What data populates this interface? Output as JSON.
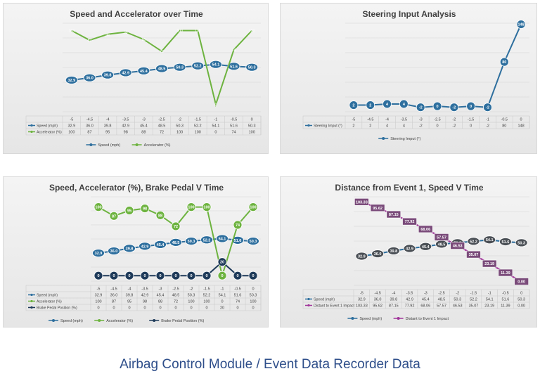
{
  "caption": "Airbag Control Module / Event Data Recorder Data",
  "chart_data": [
    {
      "type": "line",
      "title": "Speed and Accelerator over Time",
      "categories": [
        "-5",
        "-4.5",
        "-4",
        "-3.5",
        "-3",
        "-2.5",
        "-2",
        "-1.5",
        "-1",
        "-0.5",
        "0"
      ],
      "ylim": [
        -10,
        110
      ],
      "series": [
        {
          "name": "Speed (mph)",
          "color": "#2e6f9e",
          "marker": "ellipse",
          "values": [
            32.9,
            36.0,
            39.8,
            42.9,
            45.4,
            48.5,
            50.3,
            52.2,
            54.1,
            51.6,
            50.3
          ],
          "table": [
            "32.9",
            "36.0",
            "39.8",
            "42.9",
            "45.4",
            "48.5",
            "50.3",
            "52.2",
            "54.1",
            "51.6",
            "50.3"
          ]
        },
        {
          "name": "Accelerator (%)",
          "color": "#6db33f",
          "marker": "none",
          "values": [
            100,
            87,
            95,
            98,
            88,
            72,
            100,
            100,
            0,
            74,
            100
          ],
          "table": [
            "100",
            "87",
            "95",
            "98",
            "88",
            "72",
            "100",
            "100",
            "0",
            "74",
            "100"
          ]
        }
      ],
      "legend_position": "bottom"
    },
    {
      "type": "line",
      "title": "Steering Input Analysis",
      "categories": [
        "-5",
        "-4.5",
        "-4",
        "-3.5",
        "-3",
        "-2.5",
        "-2",
        "-1.5",
        "-1",
        "-0.5",
        "0"
      ],
      "ylim": [
        -10,
        150
      ],
      "series": [
        {
          "name": "Steering Imput (°)",
          "color": "#2e6f9e",
          "marker": "circle",
          "values": [
            2,
            2,
            4,
            4,
            -2,
            0,
            -2,
            0,
            -2,
            80,
            148
          ],
          "table": [
            "2",
            "2",
            "4",
            "4",
            "-2",
            "0",
            "-2",
            "0",
            "-2",
            "80",
            "148"
          ]
        }
      ],
      "legend_position": "bottom"
    },
    {
      "type": "line",
      "title": "Speed, Accelerator (%), Brake Pedal V Time",
      "categories": [
        "-5",
        "-4.5",
        "-4",
        "-3.5",
        "-3",
        "-2.5",
        "-2",
        "-1.5",
        "-1",
        "-0.5",
        "0"
      ],
      "ylim": [
        -8,
        115
      ],
      "series": [
        {
          "name": "Speed (mph)",
          "color": "#2e6f9e",
          "marker": "ellipse",
          "values": [
            32.9,
            36.0,
            39.8,
            42.9,
            45.4,
            48.5,
            50.3,
            52.2,
            54.1,
            51.6,
            50.3
          ],
          "table": [
            "32.9",
            "36.0",
            "39.8",
            "42.9",
            "45.4",
            "48.5",
            "50.3",
            "52.2",
            "54.1",
            "51.6",
            "50.3"
          ]
        },
        {
          "name": "Accelerator (%)",
          "color": "#6db33f",
          "marker": "circle",
          "values": [
            100,
            87,
            95,
            98,
            88,
            72,
            100,
            100,
            0,
            74,
            100
          ],
          "table": [
            "100",
            "87",
            "95",
            "98",
            "88",
            "72",
            "100",
            "100",
            "0",
            "74",
            "100"
          ]
        },
        {
          "name": "Brake Pedal Position (%)",
          "color": "#1f3b5a",
          "marker": "circle",
          "values": [
            0,
            0,
            0,
            0,
            0,
            0,
            0,
            0,
            20,
            0,
            0
          ],
          "table": [
            "0",
            "0",
            "0",
            "0",
            "0",
            "0",
            "0",
            "0",
            "20",
            "0",
            "0"
          ]
        }
      ],
      "legend_position": "bottom"
    },
    {
      "type": "line",
      "title": "Distance from Event 1,  Speed V Time",
      "categories": [
        "-5",
        "-4.5",
        "-4",
        "-3.5",
        "-3",
        "-2.5",
        "-2",
        "-1.5",
        "-1",
        "-0.5",
        "0"
      ],
      "ylim": [
        -5,
        110
      ],
      "series": [
        {
          "name": "Speed (mph)",
          "color": "#2e6f9e",
          "marker": "ellipse-dark",
          "values": [
            32.9,
            36.0,
            39.8,
            42.9,
            45.4,
            48.5,
            50.3,
            52.2,
            54.1,
            51.6,
            50.3
          ],
          "table": [
            "32.9",
            "36.0",
            "39.8",
            "42.9",
            "45.4",
            "48.5",
            "50.3",
            "52.2",
            "54.1",
            "51.6",
            "50.3"
          ]
        },
        {
          "name": "Distant to Event 1 Impact",
          "color": "#a0359a",
          "marker": "rect",
          "values": [
            103.33,
            95.62,
            87.15,
            77.92,
            68.06,
            57.57,
            46.53,
            35.07,
            23.19,
            11.39,
            0.0
          ],
          "table": [
            "103.33",
            "95.62",
            "87.15",
            "77.92",
            "68.06",
            "57.57",
            "46.53",
            "35.07",
            "23.19",
            "11.39",
            "0.00"
          ]
        }
      ],
      "legend_position": "bottom"
    }
  ]
}
